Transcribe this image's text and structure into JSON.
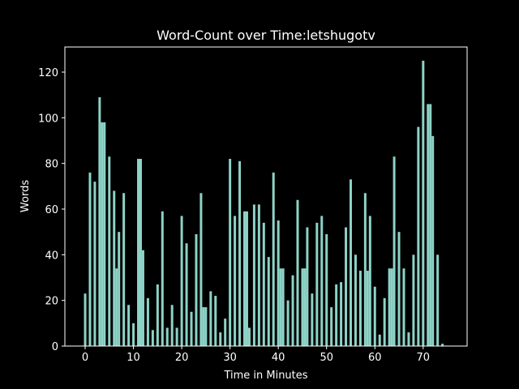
{
  "chart_data": {
    "type": "bar",
    "title": "Word-Count over Time:letshugotv",
    "xlabel": "Time in Minutes",
    "ylabel": "Words",
    "xlim": [
      -4.2,
      79.1
    ],
    "ylim": [
      0,
      131
    ],
    "xticks": [
      0,
      10,
      20,
      30,
      40,
      50,
      60,
      70
    ],
    "yticks": [
      0,
      20,
      40,
      60,
      80,
      100,
      120
    ],
    "grid": false,
    "colors": {
      "bar": "#8dd3c7",
      "background": "#000000",
      "axis": "#ffffff"
    },
    "x": [
      0,
      1,
      2,
      3,
      4,
      5,
      6,
      7,
      8,
      9,
      10,
      11,
      12,
      13,
      14,
      15,
      16,
      17,
      18,
      19,
      20,
      21,
      22,
      23,
      24,
      25,
      26,
      27,
      28,
      29,
      30,
      31,
      32,
      33,
      34,
      35,
      36,
      37,
      38,
      39,
      40,
      41,
      42,
      43,
      44,
      45,
      46,
      47,
      48,
      49,
      50,
      51,
      52,
      53,
      54,
      55,
      56,
      57,
      58,
      59,
      60,
      61,
      62,
      63,
      64,
      65,
      66,
      67,
      68,
      69,
      70,
      71,
      72,
      73,
      74,
      75
    ],
    "values": [
      23,
      76,
      72,
      109,
      98,
      83,
      68,
      50,
      67,
      18,
      10,
      82,
      42,
      21,
      7,
      27,
      59,
      8,
      18,
      8,
      57,
      45,
      15,
      49,
      67,
      17,
      24,
      22,
      6,
      12,
      82,
      57,
      81,
      59,
      8,
      62,
      62,
      54,
      39,
      76,
      55,
      34,
      20,
      31,
      64,
      34,
      52,
      23,
      54,
      57,
      49,
      17,
      27,
      28,
      52,
      73,
      40,
      33,
      67,
      57,
      26,
      5,
      21,
      34,
      83,
      50,
      34,
      6,
      40,
      96,
      125,
      106,
      92,
      40,
      1,
      0
    ],
    "extra_bars": [
      {
        "x": 3.5,
        "value": 98
      },
      {
        "x": 6.5,
        "value": 34
      },
      {
        "x": 11.5,
        "value": 82
      },
      {
        "x": 24.5,
        "value": 17
      },
      {
        "x": 33.5,
        "value": 59
      },
      {
        "x": 40.5,
        "value": 34
      },
      {
        "x": 45.5,
        "value": 34
      },
      {
        "x": 58.5,
        "value": 33
      },
      {
        "x": 63.5,
        "value": 34
      },
      {
        "x": 71.5,
        "value": 106
      }
    ]
  }
}
